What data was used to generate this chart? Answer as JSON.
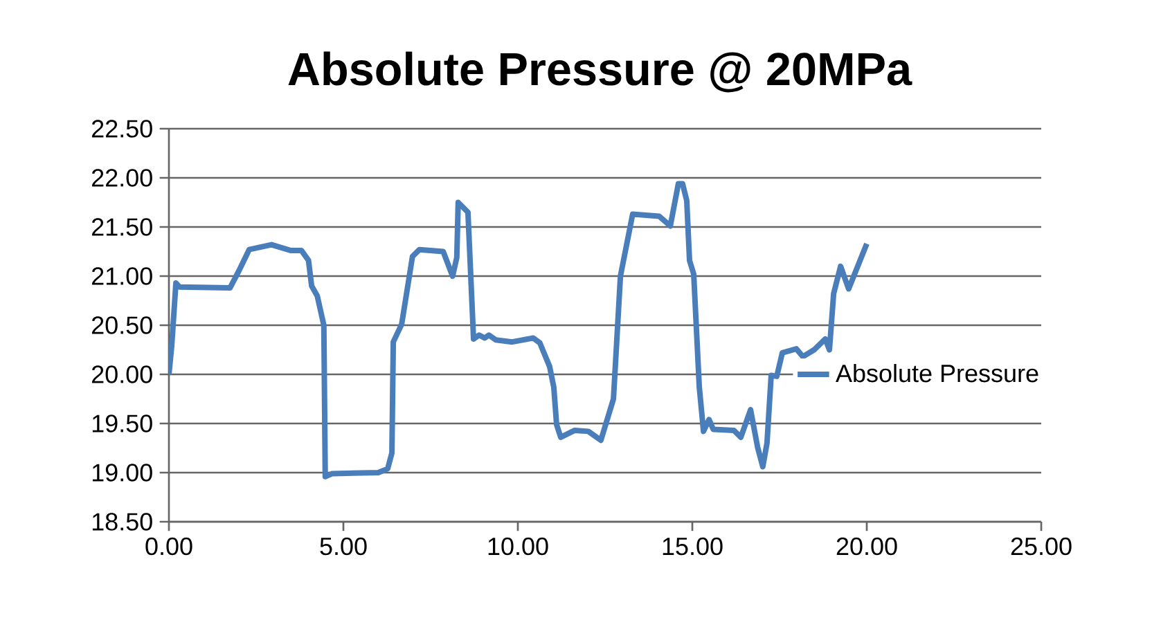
{
  "chart_data": {
    "type": "line",
    "title": "Absolute Pressure @ 20MPa",
    "x": [
      0,
      0.08,
      0.2,
      0.3,
      1.75,
      2.0,
      2.3,
      2.94,
      3.5,
      3.8,
      4.0,
      4.09,
      4.25,
      4.44,
      4.48,
      4.68,
      6.0,
      6.27,
      6.39,
      6.43,
      6.67,
      6.98,
      7.18,
      7.86,
      8.13,
      8.25,
      8.29,
      8.57,
      8.73,
      8.89,
      9.05,
      9.17,
      9.37,
      9.84,
      10.44,
      10.63,
      10.91,
      11.03,
      11.11,
      11.23,
      11.63,
      12.02,
      12.38,
      12.74,
      12.94,
      13.29,
      14.05,
      14.37,
      14.6,
      14.72,
      14.84,
      14.92,
      15.04,
      15.2,
      15.32,
      15.48,
      15.6,
      16.19,
      16.39,
      16.67,
      16.87,
      17.02,
      17.14,
      17.26,
      17.42,
      17.58,
      17.98,
      18.17,
      18.49,
      18.81,
      18.93,
      19.05,
      19.25,
      19.48,
      20.0
    ],
    "series": [
      {
        "name": "Absolute Pressure",
        "color": "#4a7ebb",
        "values": [
          20.0,
          20.29,
          20.93,
          20.89,
          20.88,
          21.05,
          21.27,
          21.32,
          21.26,
          21.26,
          21.16,
          20.9,
          20.8,
          20.5,
          18.96,
          18.99,
          19.0,
          19.04,
          19.2,
          20.33,
          20.51,
          21.2,
          21.27,
          21.25,
          21.0,
          21.19,
          21.75,
          21.65,
          20.36,
          20.4,
          20.37,
          20.4,
          20.35,
          20.33,
          20.37,
          20.32,
          20.08,
          19.87,
          19.49,
          19.36,
          19.43,
          19.42,
          19.33,
          19.75,
          21.0,
          21.63,
          21.61,
          21.51,
          21.94,
          21.94,
          21.77,
          21.16,
          21.02,
          19.87,
          19.42,
          19.54,
          19.44,
          19.43,
          19.36,
          19.64,
          19.26,
          19.06,
          19.3,
          19.99,
          19.98,
          20.22,
          20.26,
          20.18,
          20.25,
          20.36,
          20.25,
          20.82,
          21.1,
          20.87,
          21.33
        ]
      }
    ],
    "xlim": [
      0,
      25
    ],
    "xticks": [
      {
        "value": 0,
        "label": "0.00"
      },
      {
        "value": 5,
        "label": "5.00"
      },
      {
        "value": 10,
        "label": "10.00"
      },
      {
        "value": 15,
        "label": "15.00"
      },
      {
        "value": 20,
        "label": "20.00"
      },
      {
        "value": 25,
        "label": "25.00"
      }
    ],
    "ylim": [
      18.5,
      22.5
    ],
    "yticks": [
      {
        "value": 18.5,
        "label": "18.50"
      },
      {
        "value": 19,
        "label": "19.00"
      },
      {
        "value": 19.5,
        "label": "19.50"
      },
      {
        "value": 20,
        "label": "20.00"
      },
      {
        "value": 20.5,
        "label": "20.50"
      },
      {
        "value": 21,
        "label": "21.00"
      },
      {
        "value": 21.5,
        "label": "21.50"
      },
      {
        "value": 22,
        "label": "22.00"
      },
      {
        "value": 22.5,
        "label": "22.50"
      }
    ],
    "grid": "y",
    "legend": "right",
    "marker": "none",
    "line_style": "solid"
  }
}
